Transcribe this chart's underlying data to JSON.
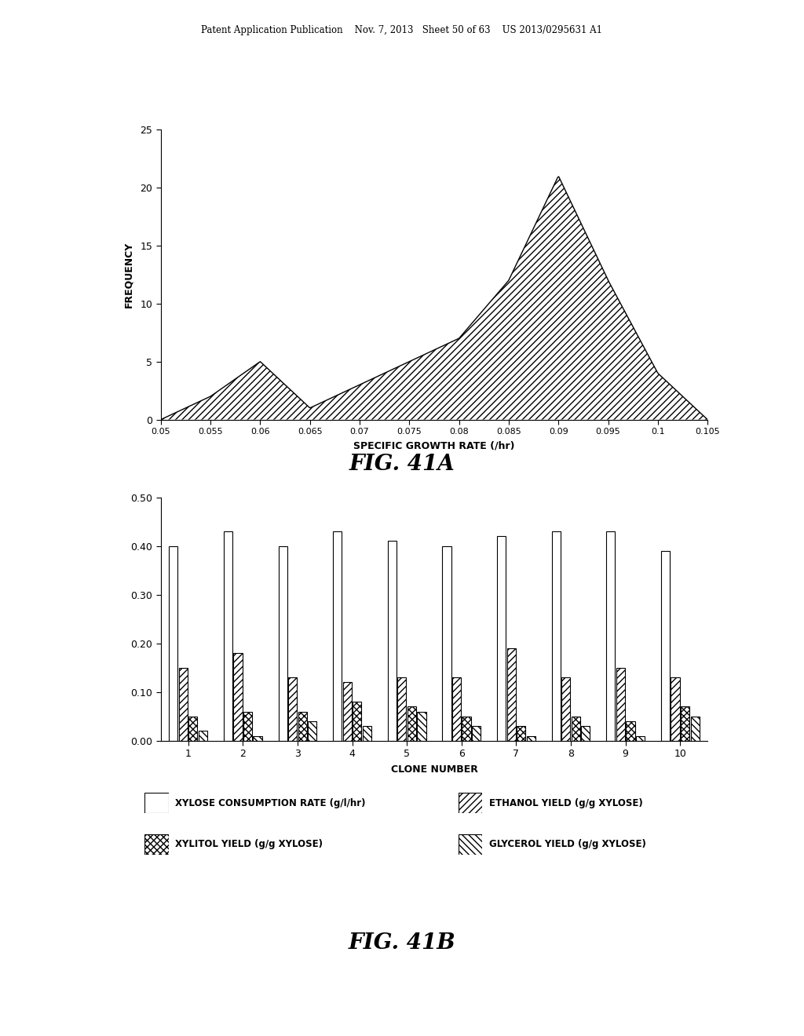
{
  "fig41a": {
    "x_values": [
      0.05,
      0.055,
      0.06,
      0.065,
      0.07,
      0.075,
      0.08,
      0.085,
      0.09,
      0.095,
      0.1,
      0.105
    ],
    "y_values": [
      0,
      2,
      5,
      1,
      3,
      5,
      7,
      12,
      21,
      12,
      4,
      0
    ],
    "xlabel": "SPECIFIC GROWTH RATE (/hr)",
    "ylabel": "FREQUENCY",
    "ylim": [
      0,
      25
    ],
    "xlim": [
      0.05,
      0.105
    ],
    "yticks": [
      0,
      5,
      10,
      15,
      20,
      25
    ],
    "xticks": [
      0.05,
      0.055,
      0.06,
      0.065,
      0.07,
      0.075,
      0.08,
      0.085,
      0.09,
      0.095,
      0.1,
      0.105
    ],
    "title": "FIG. 41A"
  },
  "fig41b": {
    "clones": [
      1,
      2,
      3,
      4,
      5,
      6,
      7,
      8,
      9,
      10
    ],
    "xylose_consumption": [
      0.4,
      0.43,
      0.4,
      0.43,
      0.41,
      0.4,
      0.42,
      0.43,
      0.43,
      0.39
    ],
    "ethanol_yield": [
      0.15,
      0.18,
      0.13,
      0.12,
      0.13,
      0.13,
      0.19,
      0.13,
      0.15,
      0.13
    ],
    "xylitol_yield": [
      0.05,
      0.06,
      0.06,
      0.08,
      0.07,
      0.05,
      0.03,
      0.05,
      0.04,
      0.07
    ],
    "glycerol_yield": [
      0.02,
      0.01,
      0.04,
      0.03,
      0.06,
      0.03,
      0.01,
      0.03,
      0.01,
      0.05
    ],
    "xlabel": "CLONE NUMBER",
    "ylim": [
      0,
      0.5
    ],
    "yticks": [
      0.0,
      0.1,
      0.2,
      0.3,
      0.4,
      0.5
    ],
    "title": "FIG. 41B",
    "legend_labels": [
      "XYLOSE CONSUMPTION RATE (g/l/hr)",
      "ETHANOL YIELD (g/g XYLOSE)",
      "XYLITOL YIELD (g/g XYLOSE)",
      "GLYCEROL YIELD (g/g XYLOSE)"
    ]
  },
  "header_text": "Patent Application Publication    Nov. 7, 2013   Sheet 50 of 63    US 2013/0295631 A1",
  "background_color": "#ffffff"
}
